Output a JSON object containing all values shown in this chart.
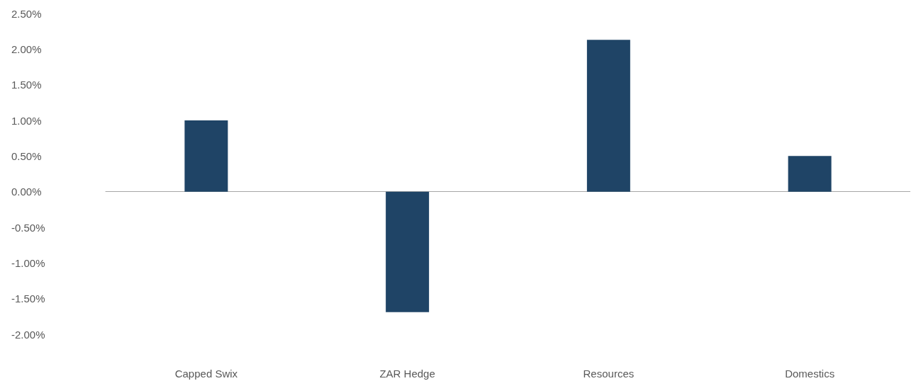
{
  "chart_data": {
    "type": "bar",
    "categories": [
      "Capped Swix",
      "ZAR Hedge",
      "Resources",
      "Domestics"
    ],
    "values": [
      1.0,
      -1.69,
      2.13,
      0.5
    ],
    "color": "#1f4466",
    "ylim": [
      -2,
      2.5
    ],
    "yticks": [
      {
        "value": -2,
        "label": "-2.00%"
      },
      {
        "value": -1.5,
        "label": "-1.50%"
      },
      {
        "value": -1,
        "label": "-1.00%"
      },
      {
        "value": -0.5,
        "label": "-0.50%"
      },
      {
        "value": 0,
        "label": "0.00%"
      },
      {
        "value": 0.5,
        "label": "0.50%"
      },
      {
        "value": 1,
        "label": "1.00%"
      },
      {
        "value": 1.5,
        "label": "1.50%"
      },
      {
        "value": 2,
        "label": "2.00%"
      },
      {
        "value": 2.5,
        "label": "2.50%"
      }
    ]
  }
}
